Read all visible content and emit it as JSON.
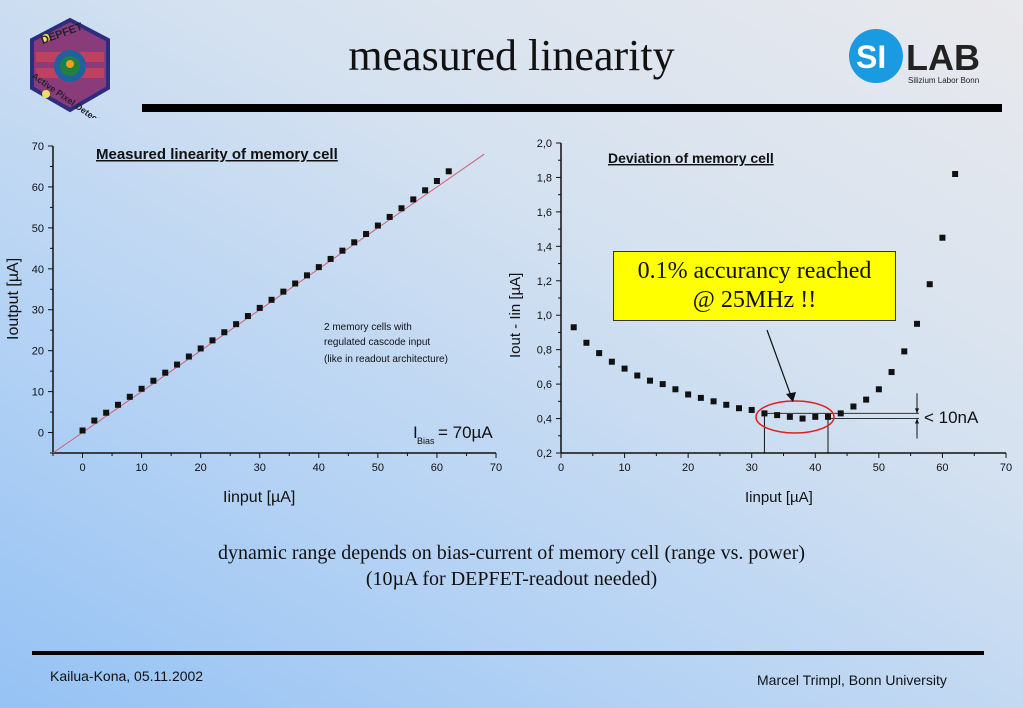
{
  "slide": {
    "title": "measured linearity",
    "caption_line1": "dynamic range depends on bias-current of memory cell (range vs. power)",
    "caption_line2": "(10µA for DEPFET-readout needed)",
    "footer_left": "Kailua-Kona, 05.11.2002",
    "footer_right": "Marcel Trimpl, Bonn University",
    "logo_left_text": "DEPFET Active Pixel Detector",
    "logo_right_text": "SI LAB",
    "logo_right_subtext": "Silizium Labor Bonn"
  },
  "chart_data": [
    {
      "type": "scatter",
      "title": "Measured linearity of memory cell",
      "xlabel": "Iinput [µA]",
      "ylabel": "Ioutput [µA]",
      "xlim": [
        -5,
        70
      ],
      "ylim": [
        -5,
        70
      ],
      "xticks": [
        "0",
        "10",
        "20",
        "30",
        "40",
        "50",
        "60",
        "70"
      ],
      "yticks": [
        "0",
        "10",
        "20",
        "30",
        "40",
        "50",
        "60",
        "70"
      ],
      "fit_line": {
        "slope": 1,
        "intercept": 0,
        "color": "#d06070"
      },
      "annotation_lines": [
        "2 memory cells with",
        "regulated cascode input",
        "(like in readout architecture)"
      ],
      "bias_label": "I",
      "bias_sub": "Bias",
      "bias_value": "= 70µA",
      "x": [
        0,
        2,
        4,
        6,
        8,
        10,
        12,
        14,
        16,
        18,
        20,
        22,
        24,
        26,
        28,
        30,
        32,
        34,
        36,
        38,
        40,
        42,
        44,
        46,
        48,
        50,
        52,
        54,
        56,
        58,
        60,
        62
      ],
      "y": [
        0.5,
        2.93,
        4.84,
        6.78,
        8.73,
        10.69,
        12.65,
        14.62,
        16.6,
        18.57,
        20.54,
        22.52,
        24.5,
        26.48,
        28.46,
        30.45,
        32.43,
        34.42,
        36.41,
        38.4,
        40.41,
        42.41,
        44.43,
        46.47,
        48.51,
        50.57,
        52.67,
        54.79,
        56.95,
        59.18,
        61.45,
        63.82
      ]
    },
    {
      "type": "scatter",
      "title": "Deviation of memory cell",
      "xlabel": "Iinput [µA]",
      "ylabel": "Iout - Iin [µA]",
      "xlim": [
        0,
        70
      ],
      "ylim": [
        0.2,
        2.0
      ],
      "xticks": [
        "0",
        "10",
        "20",
        "30",
        "40",
        "50",
        "60",
        "70"
      ],
      "yticks": [
        "0,2",
        "0,4",
        "0,6",
        "0,8",
        "1,0",
        "1,2",
        "1,4",
        "1,6",
        "1,8",
        "2,0"
      ],
      "callout_line1": "0.1% accurancy reached",
      "callout_line2": "@ 25MHz !!",
      "range_label": "< 10nA",
      "highlight_x_range": [
        32,
        42
      ],
      "highlight_y_range": [
        0.4,
        0.43
      ],
      "x": [
        2,
        4,
        6,
        8,
        10,
        12,
        14,
        16,
        18,
        20,
        22,
        24,
        26,
        28,
        30,
        32,
        34,
        36,
        38,
        40,
        42,
        44,
        46,
        48,
        50,
        52,
        54,
        56,
        58,
        60,
        62
      ],
      "y": [
        0.93,
        0.84,
        0.78,
        0.73,
        0.69,
        0.65,
        0.62,
        0.6,
        0.57,
        0.54,
        0.52,
        0.5,
        0.48,
        0.46,
        0.45,
        0.43,
        0.42,
        0.41,
        0.4,
        0.41,
        0.41,
        0.43,
        0.47,
        0.51,
        0.57,
        0.67,
        0.79,
        0.95,
        1.18,
        1.45,
        1.82
      ]
    }
  ]
}
